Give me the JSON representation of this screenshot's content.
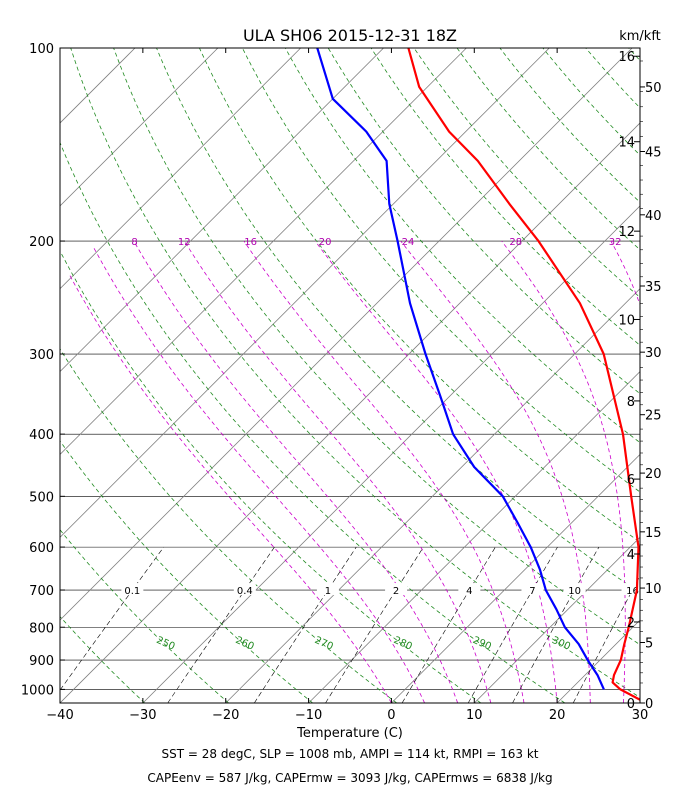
{
  "title": "ULA SH06 2015-12-31 18Z",
  "right_axis_unit": "km/kft",
  "xlabel": "Temperature (C)",
  "footer_line1": "SST = 28 degC, SLP = 1008 mb, AMPI = 114 kt, RMPI = 163 kt",
  "footer_line2": "CAPEenv = 587 J/kg, CAPErmw = 3093 J/kg, CAPErmws = 6838 J/kg",
  "colors": {
    "temperature": "#ff0000",
    "dewpoint": "#0000ff",
    "isotherm": "#808080",
    "dry_adiabat": "#228b22",
    "moist_adiabat": "#cc00cc",
    "mixing_ratio": "#000000"
  },
  "chart_data": {
    "type": "skew-t",
    "xlim": [
      -40,
      30
    ],
    "ylim_hpa": [
      1050,
      100
    ],
    "x_ticks": [
      -40,
      -30,
      -20,
      -10,
      0,
      10,
      20,
      30
    ],
    "x_tick_labels": [
      "−40",
      "−30",
      "−20",
      "−10",
      "0",
      "10",
      "20",
      "30"
    ],
    "pressure_levels": [
      1000,
      900,
      800,
      700,
      600,
      500,
      400,
      300,
      200,
      100
    ],
    "km_labels": [
      {
        "p": 1050,
        "text": "0"
      },
      {
        "p": 785,
        "text": "2"
      },
      {
        "p": 615,
        "text": "4"
      },
      {
        "p": 470,
        "text": "6"
      },
      {
        "p": 355,
        "text": "8"
      },
      {
        "p": 265,
        "text": "10"
      },
      {
        "p": 193,
        "text": "12"
      },
      {
        "p": 140,
        "text": "14"
      },
      {
        "p": 103,
        "text": "16"
      }
    ],
    "kft_labels": [
      {
        "p": 1050,
        "text": "0"
      },
      {
        "p": 845,
        "text": "5"
      },
      {
        "p": 695,
        "text": "10"
      },
      {
        "p": 568,
        "text": "15"
      },
      {
        "p": 460,
        "text": "20"
      },
      {
        "p": 373,
        "text": "25"
      },
      {
        "p": 298,
        "text": "30"
      },
      {
        "p": 235,
        "text": "35"
      },
      {
        "p": 182,
        "text": "40"
      },
      {
        "p": 145,
        "text": "45"
      },
      {
        "p": 115,
        "text": "50"
      }
    ],
    "mixing_ratio_labels": [
      "0.1",
      "0.4",
      "1",
      "2",
      "4",
      "7",
      "10",
      "16"
    ],
    "dry_adiabat_labels": [
      "250",
      "260",
      "270",
      "280",
      "290",
      "300"
    ],
    "moist_adiabat_labels": [
      "8",
      "12",
      "16",
      "20",
      "24",
      "28",
      "32"
    ],
    "series": [
      {
        "name": "Temperature",
        "points": [
          {
            "p": 1040,
            "t": 29.8
          },
          {
            "p": 1000,
            "t": 26.0
          },
          {
            "p": 975,
            "t": 24.2
          },
          {
            "p": 950,
            "t": 23.5
          },
          {
            "p": 900,
            "t": 22.5
          },
          {
            "p": 850,
            "t": 21.0
          },
          {
            "p": 800,
            "t": 19.5
          },
          {
            "p": 700,
            "t": 16.0
          },
          {
            "p": 600,
            "t": 11.0
          },
          {
            "p": 500,
            "t": 4.0
          },
          {
            "p": 400,
            "t": -4.5
          },
          {
            "p": 300,
            "t": -16.5
          },
          {
            "p": 250,
            "t": -25.5
          },
          {
            "p": 200,
            "t": -38.0
          },
          {
            "p": 175,
            "t": -46.0
          },
          {
            "p": 150,
            "t": -55.0
          },
          {
            "p": 135,
            "t": -62.0
          },
          {
            "p": 115,
            "t": -71.0
          },
          {
            "p": 100,
            "t": -77.0
          }
        ]
      },
      {
        "name": "Dewpoint",
        "points": [
          {
            "p": 1000,
            "t": 24.0
          },
          {
            "p": 950,
            "t": 21.5
          },
          {
            "p": 900,
            "t": 18.5
          },
          {
            "p": 850,
            "t": 15.5
          },
          {
            "p": 800,
            "t": 11.8
          },
          {
            "p": 750,
            "t": 8.6
          },
          {
            "p": 700,
            "t": 5.0
          },
          {
            "p": 650,
            "t": 1.8
          },
          {
            "p": 600,
            "t": -2.0
          },
          {
            "p": 550,
            "t": -6.5
          },
          {
            "p": 500,
            "t": -11.5
          },
          {
            "p": 450,
            "t": -18.5
          },
          {
            "p": 400,
            "t": -25.0
          },
          {
            "p": 350,
            "t": -31.0
          },
          {
            "p": 300,
            "t": -38.0
          },
          {
            "p": 250,
            "t": -46.0
          },
          {
            "p": 200,
            "t": -55.0
          },
          {
            "p": 175,
            "t": -60.5
          },
          {
            "p": 150,
            "t": -66.0
          },
          {
            "p": 135,
            "t": -72.0
          },
          {
            "p": 120,
            "t": -80.0
          },
          {
            "p": 100,
            "t": -88.0
          }
        ]
      }
    ]
  }
}
